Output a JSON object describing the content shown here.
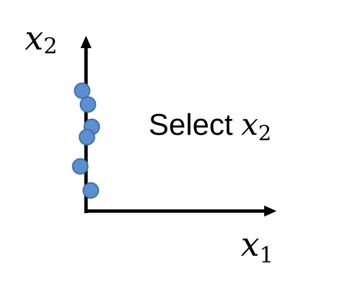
{
  "diagram": {
    "y_axis_label": {
      "var": "x",
      "sub": "2"
    },
    "x_axis_label": {
      "var": "x",
      "sub": "1"
    },
    "caption": {
      "prefix": "Select ",
      "var": "x",
      "sub": "2"
    }
  },
  "colors": {
    "axis": "#000000",
    "point_fill": "#5B8FD0",
    "point_stroke": "#3E6FAE"
  },
  "points": [
    {
      "x1": -0.2,
      "x2": 7.0
    },
    {
      "x1": 0.1,
      "x2": 6.2
    },
    {
      "x1": 0.3,
      "x2": 4.9
    },
    {
      "x1": 0.05,
      "x2": 4.3
    },
    {
      "x1": -0.3,
      "x2": 2.6
    },
    {
      "x1": 0.25,
      "x2": 1.2
    }
  ]
}
